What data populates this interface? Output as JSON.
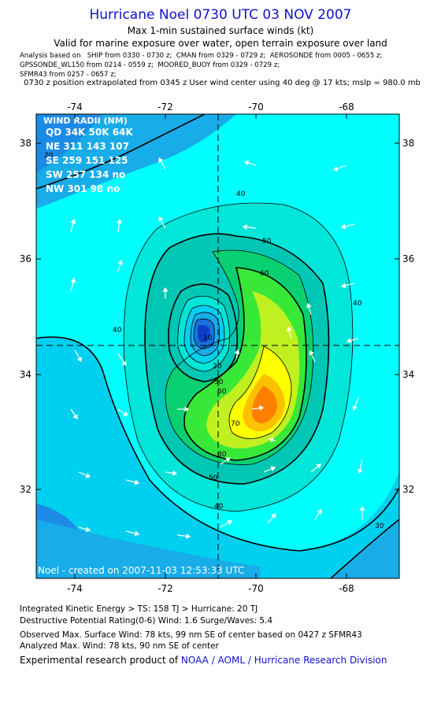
{
  "header": {
    "title": "Hurricane Noel 0730 UTC 03 NOV 2007",
    "subtitle": "Max 1-min sustained surface winds (kt)",
    "validity": "Valid for marine exposure over water, open terrain exposure over land",
    "analysis_lines": [
      "Analysis based on   SHIP from 0330 - 0730 z;  CMAN from 0329 - 0729 z;  AEROSONDE from 0005 - 0655 z;",
      "GPSSONDE_WL150 from 0214 - 0559 z;  MOORED_BUOY from 0329 - 0729 z;",
      "SFMR43 from 0257 - 0657 z;"
    ],
    "position_line": "0730 z position extrapolated from 0345 z User wind center using 40 deg @ 17 kts; mslp = 980.0 mb"
  },
  "map": {
    "x_ticks": [
      "-74",
      "-72",
      "-70",
      "-68"
    ],
    "y_ticks": [
      "38",
      "36",
      "34",
      "32"
    ],
    "lon_range": [
      -75,
      -67
    ],
    "lat_range": [
      30.4,
      38.4
    ],
    "center": {
      "lon": -71.0,
      "lat": 34.5
    },
    "wind_radii": {
      "title": "WIND RADII (NM)",
      "rows": [
        "QD 34K 50K 64K",
        "NE 311 143 107",
        "SE 259 151 125",
        "SW 257 134  no",
        "NW 301  98  no"
      ]
    },
    "contour_labels": [
      "10",
      "20",
      "30",
      "40",
      "40",
      "40",
      "40",
      "50",
      "50",
      "50",
      "60",
      "70",
      "80",
      "30",
      "20"
    ],
    "credit": "Noel  -  created  on  2007-11-03  12:53:33  UTC",
    "colors": {
      "c0": "#1c8be6",
      "c1": "#18ace8",
      "c2": "#00d0f0",
      "c3": "#00ffff",
      "c4": "#00e6d8",
      "c5": "#00c6b4",
      "c6": "#08d070",
      "c7": "#38e838",
      "c8": "#c0f020",
      "c9": "#ffff00",
      "c10": "#ffc000",
      "c11": "#ff8000",
      "c12": "#1870d8",
      "c13": "#0a3cc8"
    }
  },
  "footer": {
    "ike": "Integrated Kinetic Energy > TS: 158 TJ   > Hurricane: 20 TJ",
    "dpr": "Destructive Potential Rating(0-6)   Wind: 1.6 Surge/Waves: 5.4",
    "obs": "Observed Max. Surface Wind: 78 kts, 99 nm SE of center based on 0427 z SFMR43",
    "ana": "Analyzed Max. Wind: 78 kts, 90 nm SE of center",
    "credit_prefix": "Experimental research product of ",
    "credit_org": "NOAA / AOML / Hurricane Research Division"
  }
}
